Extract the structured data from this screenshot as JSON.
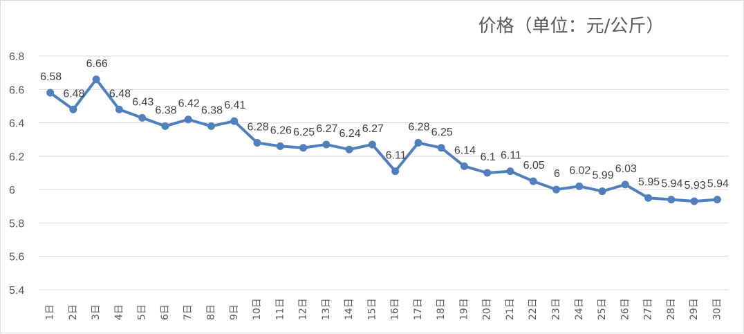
{
  "chart_data": {
    "type": "line",
    "title": "价格（单位：元/公斤）",
    "xlabel": "",
    "ylabel": "",
    "categories": [
      "1日",
      "2日",
      "3日",
      "4日",
      "5日",
      "6日",
      "7日",
      "8日",
      "9日",
      "10日",
      "11日",
      "12日",
      "13日",
      "14日",
      "15日",
      "16日",
      "17日",
      "18日",
      "19日",
      "20日",
      "21日",
      "22日",
      "23日",
      "24日",
      "25日",
      "26日",
      "27日",
      "28日",
      "29日",
      "30日"
    ],
    "series": [
      {
        "values": [
          6.58,
          6.48,
          6.66,
          6.48,
          6.43,
          6.38,
          6.42,
          6.38,
          6.41,
          6.28,
          6.26,
          6.25,
          6.27,
          6.24,
          6.27,
          6.11,
          6.28,
          6.25,
          6.14,
          6.1,
          6.11,
          6.05,
          6,
          6.02,
          5.99,
          6.03,
          5.95,
          5.94,
          5.93,
          5.94
        ],
        "labels": [
          "6.58",
          "6.48",
          "6.66",
          "6.48",
          "6.43",
          "6.38",
          "6.42",
          "6.38",
          "6.41",
          "6.28",
          "6.26",
          "6.25",
          "6.27",
          "6.24",
          "6.27",
          "6.11",
          "6.28",
          "6.25",
          "6.14",
          "6.1",
          "6.11",
          "6.05",
          "6",
          "6.02",
          "5.99",
          "6.03",
          "5.95",
          "5.94",
          "5.93",
          "5.94"
        ]
      }
    ],
    "ylim": [
      5.4,
      6.8
    ],
    "yticks": [
      "5.4",
      "5.6",
      "5.8",
      "6",
      "6.2",
      "6.4",
      "6.6",
      "6.8"
    ],
    "grid": true,
    "legend": "none",
    "colors": {
      "series": "#4f7fbd",
      "grid": "#d9d9d9",
      "text": "#595959"
    }
  }
}
